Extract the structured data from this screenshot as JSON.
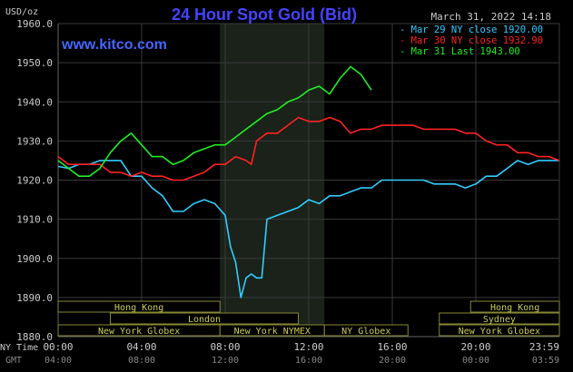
{
  "header": {
    "title": "24 Hour Spot Gold (Bid)",
    "timestamp": "March 31, 2022 14:18",
    "unit": "USD/oz",
    "site": "www.kitco.com"
  },
  "chart_data": {
    "type": "line",
    "title": "24 Hour Spot Gold (Bid)",
    "ylabel": "USD/oz",
    "ylim": [
      1880,
      1960
    ],
    "y_ticks": [
      "1960.0",
      "1950.0",
      "1940.0",
      "1930.0",
      "1920.0",
      "1910.0",
      "1900.0",
      "1890.0",
      "1880.0"
    ],
    "x_ticks_ny": [
      "00:00",
      "04:00",
      "08:00",
      "12:00",
      "16:00",
      "20:00",
      "23:59"
    ],
    "x_ticks_gmt": [
      "04:00",
      "08:00",
      "12:00",
      "16:00",
      "20:00",
      "00:00",
      "03:59"
    ],
    "x_axis_labels": {
      "ny": "NY Time",
      "gmt": "GMT"
    },
    "highlight_range_hours": [
      7.75,
      12.75
    ],
    "grid": true,
    "legend_position": "top-right",
    "series": [
      {
        "name": "Mar 29 NY close 1920.00",
        "color": "#33ccff",
        "points": [
          [
            0,
            1923.5
          ],
          [
            0.5,
            1923
          ],
          [
            1,
            1924
          ],
          [
            1.5,
            1924
          ],
          [
            2,
            1925
          ],
          [
            2.5,
            1925
          ],
          [
            3,
            1925
          ],
          [
            3.5,
            1921
          ],
          [
            4,
            1921
          ],
          [
            4.5,
            1918
          ],
          [
            5,
            1916
          ],
          [
            5.5,
            1912
          ],
          [
            6,
            1912
          ],
          [
            6.5,
            1914
          ],
          [
            7,
            1915
          ],
          [
            7.5,
            1914
          ],
          [
            8,
            1911
          ],
          [
            8.25,
            1903
          ],
          [
            8.5,
            1899
          ],
          [
            8.75,
            1890
          ],
          [
            9,
            1895
          ],
          [
            9.25,
            1896
          ],
          [
            9.5,
            1895
          ],
          [
            9.75,
            1895
          ],
          [
            10,
            1910
          ],
          [
            10.5,
            1911
          ],
          [
            11,
            1912
          ],
          [
            11.5,
            1913
          ],
          [
            12,
            1915
          ],
          [
            12.5,
            1914
          ],
          [
            13,
            1916
          ],
          [
            13.5,
            1916
          ],
          [
            14,
            1917
          ],
          [
            14.5,
            1918
          ],
          [
            15,
            1918
          ],
          [
            15.5,
            1920
          ],
          [
            16,
            1920
          ],
          [
            16.5,
            1920
          ],
          [
            17,
            1920
          ],
          [
            17.5,
            1920
          ],
          [
            18,
            1919
          ],
          [
            18.5,
            1919
          ],
          [
            19,
            1919
          ],
          [
            19.5,
            1918
          ],
          [
            20,
            1919
          ],
          [
            20.5,
            1921
          ],
          [
            21,
            1921
          ],
          [
            21.5,
            1923
          ],
          [
            22,
            1925
          ],
          [
            22.5,
            1924
          ],
          [
            23,
            1925
          ],
          [
            23.5,
            1925
          ],
          [
            24,
            1925
          ]
        ]
      },
      {
        "name": "Mar 30 NY close 1932.90",
        "color": "#ff2222",
        "points": [
          [
            0,
            1926
          ],
          [
            0.5,
            1924
          ],
          [
            1,
            1924
          ],
          [
            1.5,
            1924
          ],
          [
            2,
            1924
          ],
          [
            2.5,
            1922
          ],
          [
            3,
            1922
          ],
          [
            3.5,
            1921
          ],
          [
            4,
            1922
          ],
          [
            4.5,
            1921
          ],
          [
            5,
            1921
          ],
          [
            5.5,
            1920
          ],
          [
            6,
            1920
          ],
          [
            6.5,
            1921
          ],
          [
            7,
            1922
          ],
          [
            7.5,
            1924
          ],
          [
            8,
            1924
          ],
          [
            8.5,
            1926
          ],
          [
            9,
            1925
          ],
          [
            9.25,
            1924
          ],
          [
            9.5,
            1930
          ],
          [
            10,
            1932
          ],
          [
            10.5,
            1932
          ],
          [
            11,
            1934
          ],
          [
            11.5,
            1936
          ],
          [
            12,
            1935
          ],
          [
            12.5,
            1935
          ],
          [
            13,
            1936
          ],
          [
            13.5,
            1935
          ],
          [
            14,
            1932
          ],
          [
            14.5,
            1933
          ],
          [
            15,
            1933
          ],
          [
            15.5,
            1934
          ],
          [
            16,
            1934
          ],
          [
            16.5,
            1934
          ],
          [
            17,
            1934
          ],
          [
            17.5,
            1933
          ],
          [
            18,
            1933
          ],
          [
            18.5,
            1933
          ],
          [
            19,
            1933
          ],
          [
            19.5,
            1932
          ],
          [
            20,
            1932
          ],
          [
            20.5,
            1930
          ],
          [
            21,
            1929
          ],
          [
            21.5,
            1929
          ],
          [
            22,
            1927
          ],
          [
            22.5,
            1927
          ],
          [
            23,
            1926
          ],
          [
            23.5,
            1926
          ],
          [
            24,
            1925
          ]
        ]
      },
      {
        "name": "Mar 31 Last 1943.00",
        "color": "#22ee22",
        "points": [
          [
            0,
            1925
          ],
          [
            0.5,
            1923
          ],
          [
            1,
            1921
          ],
          [
            1.5,
            1921
          ],
          [
            2,
            1923
          ],
          [
            2.5,
            1927
          ],
          [
            3,
            1930
          ],
          [
            3.5,
            1932
          ],
          [
            4,
            1929
          ],
          [
            4.5,
            1926
          ],
          [
            5,
            1926
          ],
          [
            5.5,
            1924
          ],
          [
            6,
            1925
          ],
          [
            6.5,
            1927
          ],
          [
            7,
            1928
          ],
          [
            7.5,
            1929
          ],
          [
            8,
            1929
          ],
          [
            8.5,
            1931
          ],
          [
            9,
            1933
          ],
          [
            9.5,
            1935
          ],
          [
            10,
            1937
          ],
          [
            10.5,
            1938
          ],
          [
            11,
            1940
          ],
          [
            11.5,
            1941
          ],
          [
            12,
            1943
          ],
          [
            12.5,
            1944
          ],
          [
            13,
            1942
          ],
          [
            13.5,
            1946
          ],
          [
            14,
            1949
          ],
          [
            14.5,
            1947
          ],
          [
            15,
            1943
          ]
        ]
      }
    ]
  },
  "sessions": [
    {
      "label": "Hong Kong",
      "row": 0,
      "start": 0,
      "end": 7.75
    },
    {
      "label": "London",
      "row": 1,
      "start": 2.5,
      "end": 11.5
    },
    {
      "label": "New York Globex",
      "row": 2,
      "start": 0,
      "end": 7.75
    },
    {
      "label": "New York NYMEX",
      "row": 2,
      "start": 7.75,
      "end": 12.75
    },
    {
      "label": "NY Globex",
      "row": 2,
      "start": 12.75,
      "end": 16.75
    },
    {
      "label": "Hong Kong",
      "row": 0,
      "start": 19.75,
      "end": 24
    },
    {
      "label": "Sydney",
      "row": 1,
      "start": 18.25,
      "end": 24
    },
    {
      "label": "New York Globex",
      "row": 2,
      "start": 18.25,
      "end": 24
    }
  ],
  "colors": {
    "title": "#4444ff",
    "site": "#4466ff",
    "text": "#cccccc",
    "grid": "#3a3a3a",
    "highlight": "#1a221a",
    "session_fill": "#000000",
    "session_text": "#cccc55",
    "session_border": "#888833"
  }
}
